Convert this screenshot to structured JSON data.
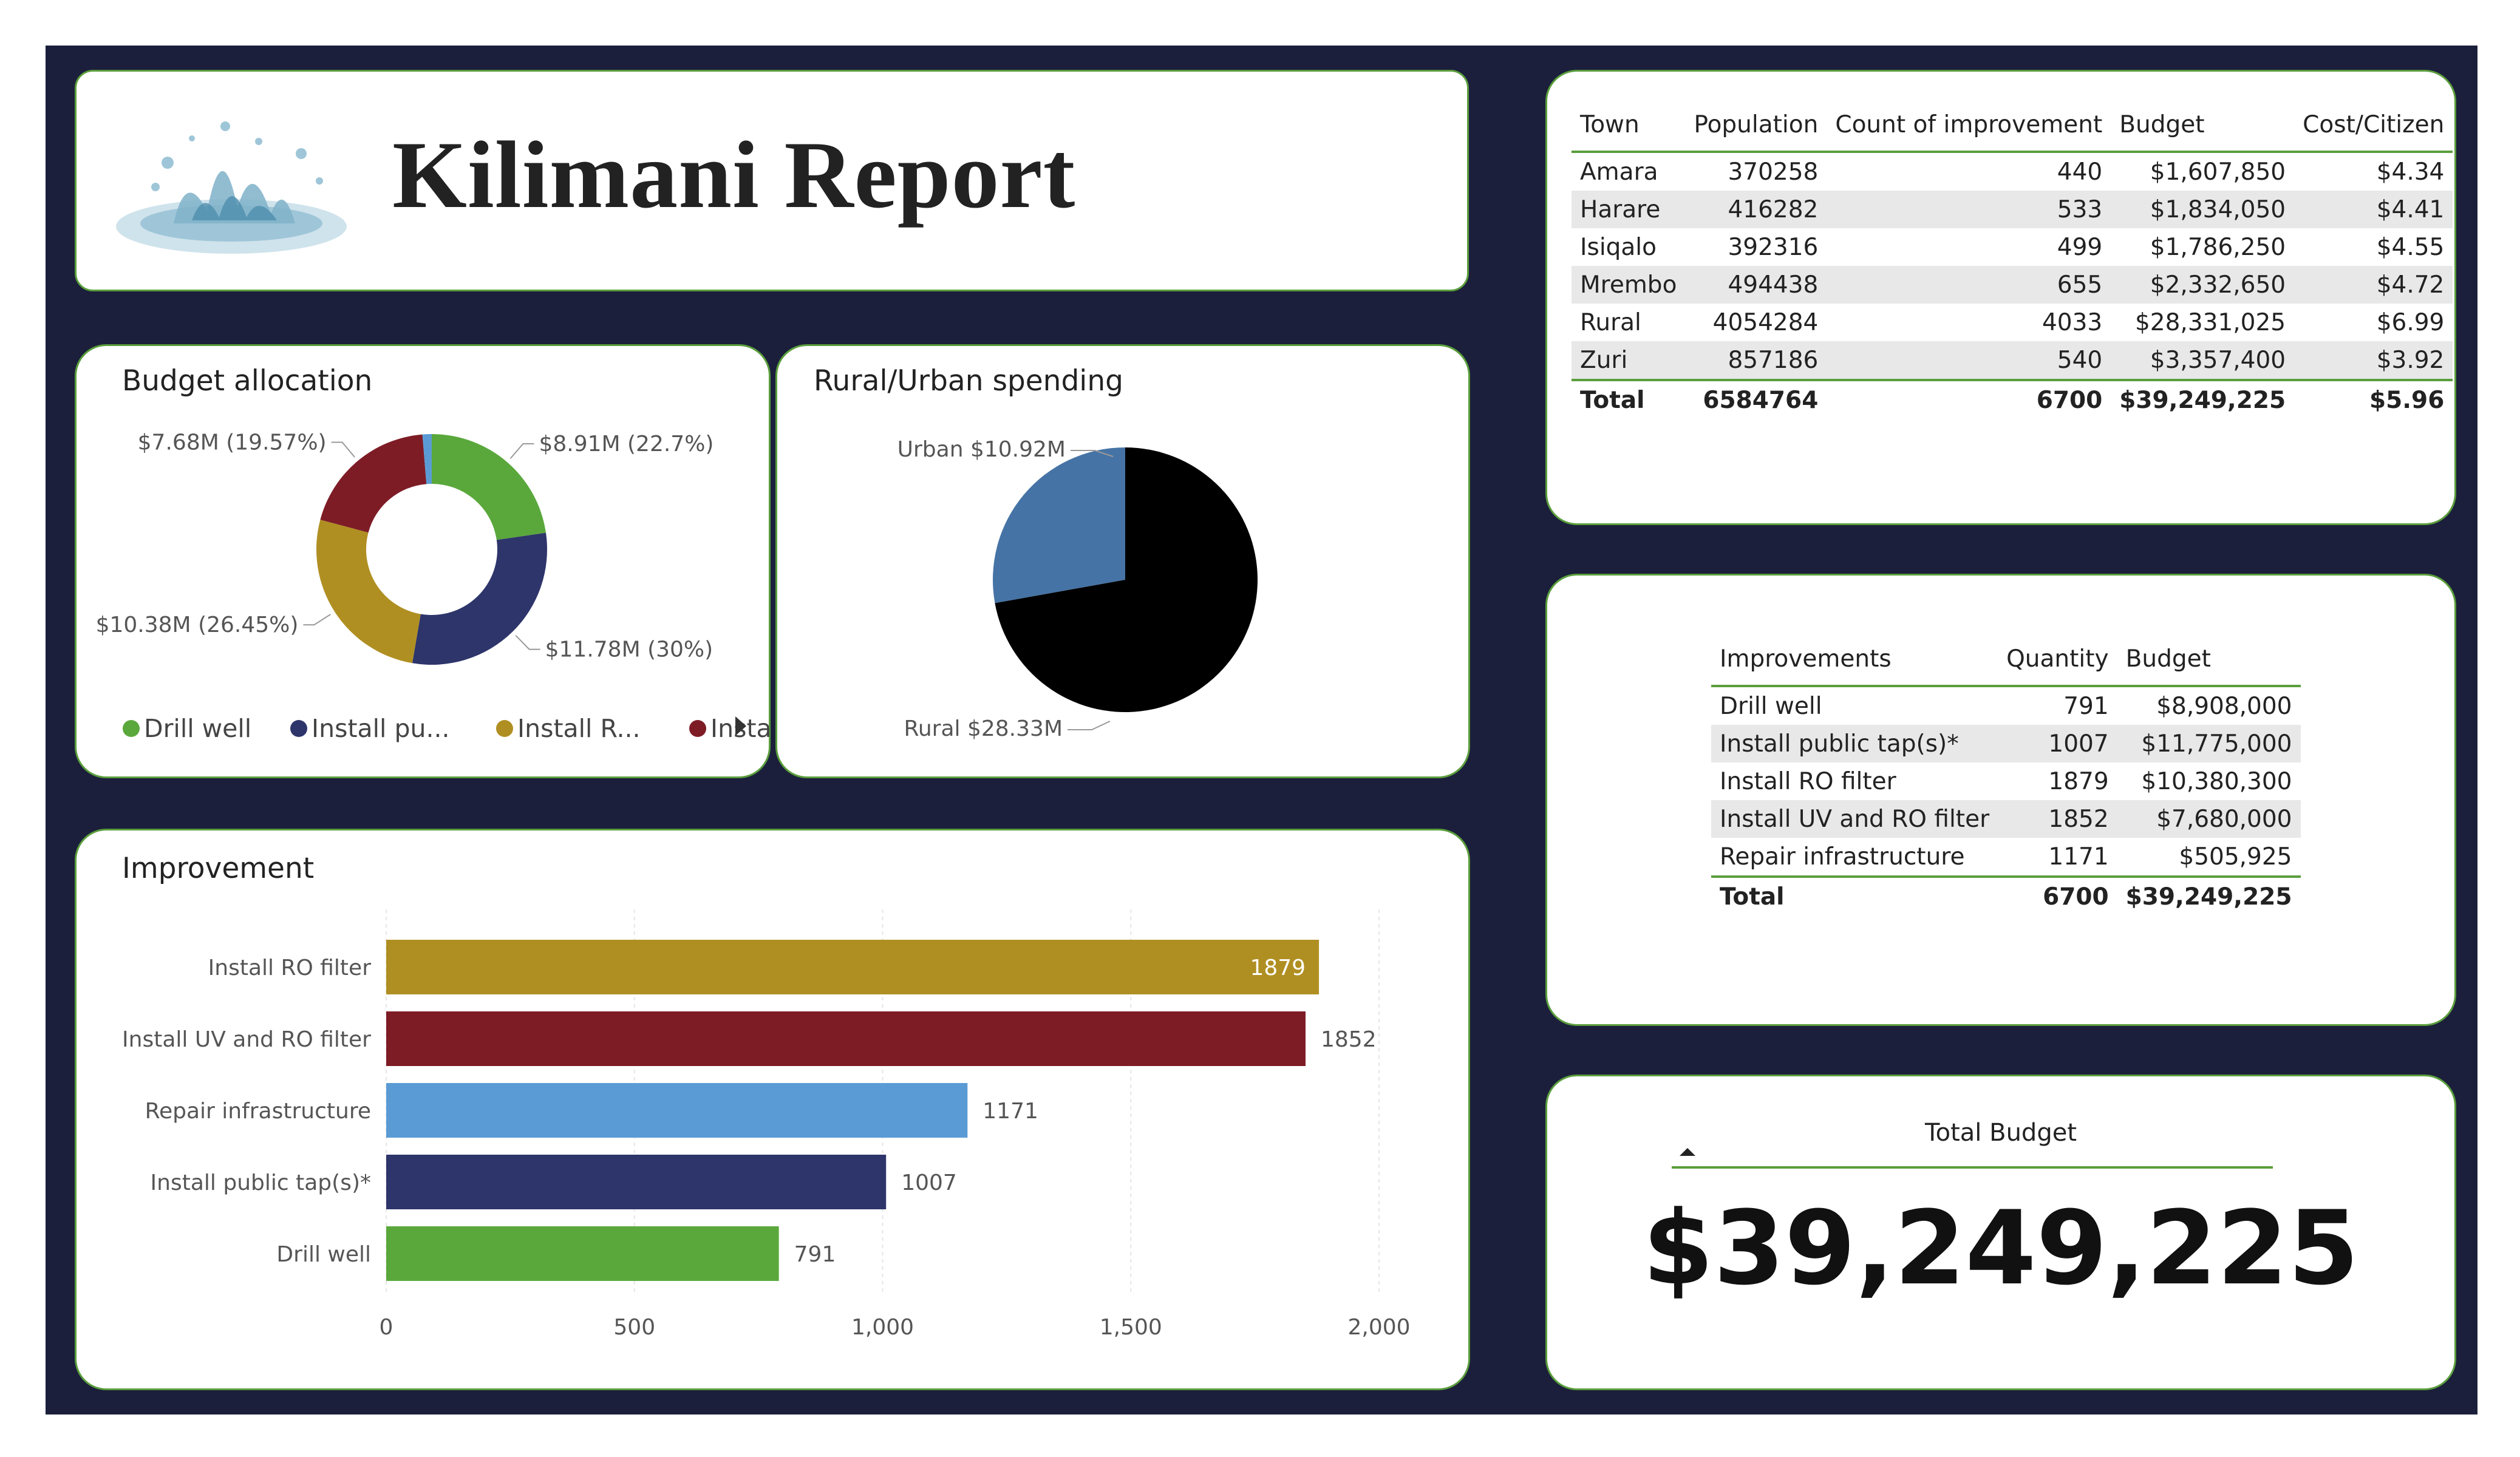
{
  "header": {
    "title": "Kilimani Report"
  },
  "colors": {
    "background": "#1b1f3b",
    "card_border": "#5a9e3c",
    "drill_well": "#5aa83c",
    "install_public_tap": "#2e356b",
    "install_ro_filter": "#b08f22",
    "install_uv_ro_filter": "#7e1c26",
    "repair_infrastructure": "#5b9bd5",
    "urban": "#4673a5",
    "rural": "#000000"
  },
  "budget_allocation": {
    "title": "Budget allocation",
    "legend": [
      "Drill well",
      "Install pu...",
      "Install R...",
      "Install U..."
    ],
    "legend_next_icon": "caret-right-icon"
  },
  "rural_urban": {
    "title": "Rural/Urban spending"
  },
  "improvement": {
    "title": "Improvement"
  },
  "chart_data": [
    {
      "type": "pie",
      "variant": "donut",
      "title": "Budget allocation",
      "categories": [
        "Drill well",
        "Install public tap(s)*",
        "Install RO filter",
        "Install UV and RO filter",
        "Repair infrastructure"
      ],
      "values": [
        8908000,
        11775000,
        10380300,
        7680000,
        505925
      ],
      "colors": [
        "#5aa83c",
        "#2e356b",
        "#b08f22",
        "#7e1c26",
        "#5b9bd5"
      ],
      "data_labels": [
        "$8.91M (22.7%)",
        "$11.78M (30%)",
        "$10.38M (26.45%)",
        "$7.68M (19.57%)",
        ""
      ],
      "legend": "bottom"
    },
    {
      "type": "pie",
      "title": "Rural/Urban spending",
      "categories": [
        "Urban",
        "Rural"
      ],
      "values": [
        10.92,
        28.33
      ],
      "colors": [
        "#4673a5",
        "#000000"
      ],
      "data_labels": [
        "Urban $10.92M",
        "Rural $28.33M"
      ]
    },
    {
      "type": "bar",
      "orientation": "horizontal",
      "title": "Improvement",
      "categories": [
        "Install RO filter",
        "Install UV and RO filter",
        "Repair infrastructure",
        "Install public tap(s)*",
        "Drill well"
      ],
      "values": [
        1879,
        1852,
        1171,
        1007,
        791
      ],
      "colors": [
        "#b08f22",
        "#7e1c26",
        "#5b9bd5",
        "#2e356b",
        "#5aa83c"
      ],
      "xlim": [
        0,
        2000
      ],
      "xticks": [
        "0",
        "500",
        "1,000",
        "1,500",
        "2,000"
      ],
      "grid": true
    }
  ],
  "town_table": {
    "headers": [
      "Town",
      "Population",
      "Count of improvement",
      "Budget",
      "Cost/Citizen"
    ],
    "rows": [
      [
        "Amara",
        "370258",
        "440",
        "$1,607,850",
        "$4.34"
      ],
      [
        "Harare",
        "416282",
        "533",
        "$1,834,050",
        "$4.41"
      ],
      [
        "Isiqalo",
        "392316",
        "499",
        "$1,786,250",
        "$4.55"
      ],
      [
        "Mrembo",
        "494438",
        "655",
        "$2,332,650",
        "$4.72"
      ],
      [
        "Rural",
        "4054284",
        "4033",
        "$28,331,025",
        "$6.99"
      ],
      [
        "Zuri",
        "857186",
        "540",
        "$3,357,400",
        "$3.92"
      ]
    ],
    "total": [
      "Total",
      "6584764",
      "6700",
      "$39,249,225",
      "$5.96"
    ]
  },
  "improvements_table": {
    "headers": [
      "Improvements",
      "Quantity",
      "Budget"
    ],
    "rows": [
      [
        "Drill well",
        "791",
        "$8,908,000"
      ],
      [
        "Install public tap(s)*",
        "1007",
        "$11,775,000"
      ],
      [
        "Install RO filter",
        "1879",
        "$10,380,300"
      ],
      [
        "Install UV and RO filter",
        "1852",
        "$7,680,000"
      ],
      [
        "Repair infrastructure",
        "1171",
        "$505,925"
      ]
    ],
    "total": [
      "Total",
      "6700",
      "$39,249,225"
    ]
  },
  "kpi": {
    "label": "Total Budget",
    "value": "$39,249,225"
  }
}
